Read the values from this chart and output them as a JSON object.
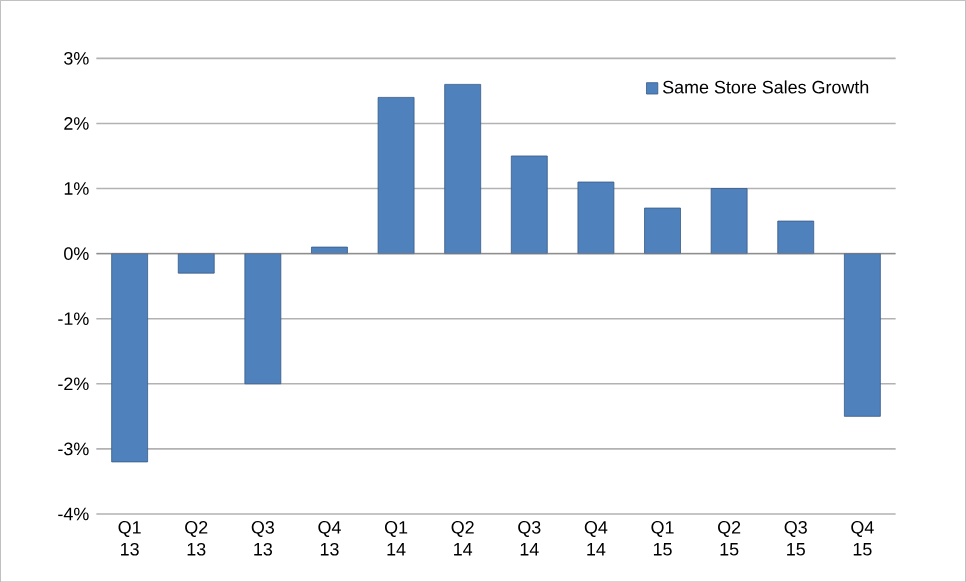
{
  "chart_data": {
    "type": "bar",
    "categories": [
      "Q1 13",
      "Q2 13",
      "Q3 13",
      "Q4 13",
      "Q1 14",
      "Q2 14",
      "Q3 14",
      "Q4 14",
      "Q1 15",
      "Q2 15",
      "Q3 15",
      "Q4 15"
    ],
    "series": [
      {
        "name": "Same Store Sales Growth",
        "color": "#4f81bd",
        "values": [
          -3.2,
          -0.3,
          -2.0,
          0.1,
          2.4,
          2.6,
          1.5,
          1.1,
          0.7,
          1.0,
          0.5,
          -2.5
        ]
      }
    ],
    "ylim": [
      -4,
      3
    ],
    "yticks": [
      {
        "value": -4,
        "label": "-4%"
      },
      {
        "value": -3,
        "label": "-3%"
      },
      {
        "value": -2,
        "label": "-2%"
      },
      {
        "value": -1,
        "label": "-1%"
      },
      {
        "value": 0,
        "label": "0%"
      },
      {
        "value": 1,
        "label": "1%"
      },
      {
        "value": 2,
        "label": "2%"
      },
      {
        "value": 3,
        "label": "3%"
      }
    ],
    "grid": "y",
    "legend": "top right"
  }
}
